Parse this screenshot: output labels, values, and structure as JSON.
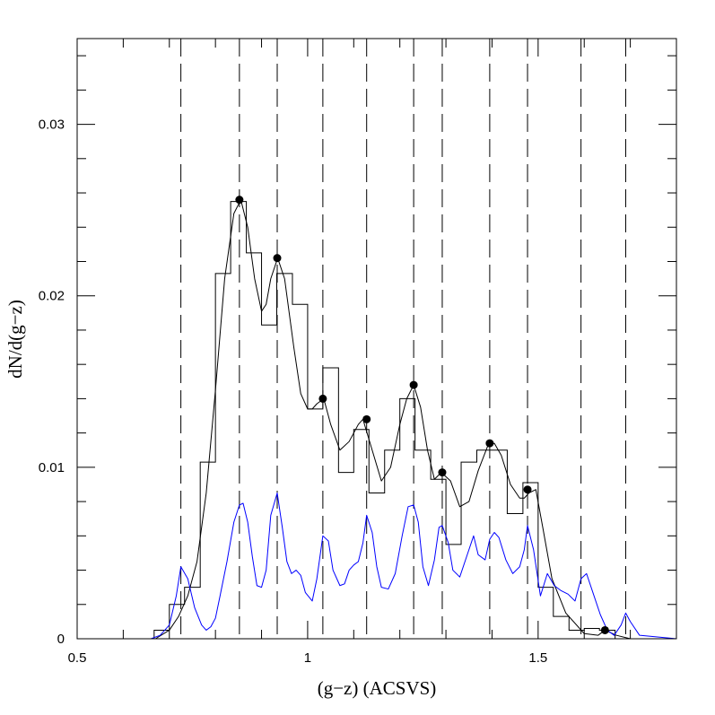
{
  "chart_data": {
    "type": "line",
    "xlabel": "(g−z)  (ACSVS)",
    "ylabel": "dN/d(g−z)",
    "xlim": [
      0.5,
      1.8
    ],
    "ylim": [
      0,
      0.035
    ],
    "x_ticks": [
      {
        "value": 0.5,
        "label": "0.5"
      },
      {
        "value": 1.0,
        "label": "1"
      },
      {
        "value": 1.5,
        "label": "1.5"
      }
    ],
    "y_ticks": [
      {
        "value": 0,
        "label": "0"
      },
      {
        "value": 0.01,
        "label": "0.01"
      },
      {
        "value": 0.02,
        "label": "0.02"
      },
      {
        "value": 0.03,
        "label": "0.03"
      }
    ],
    "x_minor_step": 0.1,
    "y_minor_step": 0.002,
    "grid": false,
    "colors": {
      "histogram": "#000000",
      "smooth": "#000000",
      "blue": "#0000ff",
      "peaks": "#000000"
    },
    "vertical_lines": [
      0.725,
      0.852,
      0.934,
      1.033,
      1.128,
      1.23,
      1.292,
      1.395,
      1.477,
      1.593,
      1.69
    ],
    "histogram": {
      "edges": [
        0.667,
        0.7,
        0.733,
        0.767,
        0.8,
        0.833,
        0.867,
        0.9,
        0.933,
        0.967,
        1.0,
        1.033,
        1.067,
        1.1,
        1.133,
        1.167,
        1.2,
        1.233,
        1.267,
        1.3,
        1.333,
        1.367,
        1.4,
        1.433,
        1.467,
        1.5,
        1.533,
        1.567,
        1.6,
        1.633,
        1.667
      ],
      "values": [
        0.0005,
        0.002,
        0.003,
        0.0103,
        0.0213,
        0.0255,
        0.0225,
        0.0183,
        0.0213,
        0.0195,
        0.0134,
        0.0158,
        0.0097,
        0.0122,
        0.0085,
        0.011,
        0.014,
        0.011,
        0.0093,
        0.0055,
        0.0103,
        0.011,
        0.011,
        0.0073,
        0.0091,
        0.003,
        0.0013,
        0.0005,
        0.0006,
        0.0005
      ]
    },
    "series": [
      {
        "style": "smooth",
        "x": [
          0.67,
          0.7,
          0.72,
          0.74,
          0.76,
          0.78,
          0.8,
          0.82,
          0.84,
          0.855,
          0.87,
          0.885,
          0.9,
          0.91,
          0.92,
          0.935,
          0.95,
          0.97,
          0.985,
          1.0,
          1.01,
          1.02,
          1.035,
          1.05,
          1.07,
          1.09,
          1.11,
          1.12,
          1.14,
          1.16,
          1.18,
          1.2,
          1.215,
          1.23,
          1.245,
          1.26,
          1.275,
          1.29,
          1.31,
          1.33,
          1.35,
          1.37,
          1.39,
          1.405,
          1.42,
          1.44,
          1.46,
          1.47,
          1.48,
          1.495,
          1.51,
          1.53,
          1.56,
          1.6,
          1.63,
          1.645,
          1.67,
          1.7
        ],
        "values": [
          0.0,
          0.0005,
          0.0013,
          0.0025,
          0.0045,
          0.0085,
          0.0145,
          0.021,
          0.0248,
          0.0256,
          0.024,
          0.021,
          0.0191,
          0.0195,
          0.021,
          0.0222,
          0.021,
          0.017,
          0.0143,
          0.0134,
          0.0134,
          0.0137,
          0.014,
          0.0125,
          0.011,
          0.0115,
          0.0125,
          0.0128,
          0.011,
          0.0092,
          0.01,
          0.0125,
          0.014,
          0.0148,
          0.0135,
          0.011,
          0.0093,
          0.0097,
          0.0092,
          0.0077,
          0.008,
          0.0098,
          0.0112,
          0.0114,
          0.0107,
          0.009,
          0.0082,
          0.0082,
          0.0085,
          0.0087,
          0.0065,
          0.0035,
          0.0015,
          0.0003,
          0.0002,
          0.0005,
          0.0002,
          0.0
        ]
      },
      {
        "style": "blue",
        "x": [
          0.5,
          0.66,
          0.68,
          0.7,
          0.715,
          0.725,
          0.74,
          0.755,
          0.77,
          0.78,
          0.79,
          0.8,
          0.81,
          0.825,
          0.84,
          0.852,
          0.86,
          0.87,
          0.88,
          0.89,
          0.9,
          0.91,
          0.92,
          0.934,
          0.945,
          0.955,
          0.965,
          0.975,
          0.985,
          0.995,
          1.01,
          1.02,
          1.033,
          1.045,
          1.055,
          1.07,
          1.08,
          1.09,
          1.1,
          1.11,
          1.12,
          1.128,
          1.14,
          1.15,
          1.16,
          1.175,
          1.19,
          1.205,
          1.218,
          1.23,
          1.24,
          1.25,
          1.262,
          1.275,
          1.285,
          1.292,
          1.305,
          1.315,
          1.33,
          1.345,
          1.36,
          1.37,
          1.385,
          1.395,
          1.405,
          1.415,
          1.43,
          1.445,
          1.46,
          1.47,
          1.477,
          1.49,
          1.505,
          1.52,
          1.535,
          1.55,
          1.565,
          1.58,
          1.593,
          1.605,
          1.62,
          1.635,
          1.65,
          1.665,
          1.68,
          1.69,
          1.7,
          1.72,
          1.8
        ],
        "values": [
          0.0,
          0.0,
          0.0002,
          0.0008,
          0.0025,
          0.0042,
          0.0035,
          0.0018,
          0.0008,
          0.0005,
          0.0007,
          0.0012,
          0.0025,
          0.0045,
          0.0068,
          0.0078,
          0.0079,
          0.0068,
          0.0048,
          0.0031,
          0.003,
          0.004,
          0.0072,
          0.0085,
          0.0065,
          0.0045,
          0.0038,
          0.004,
          0.0037,
          0.0027,
          0.0022,
          0.0035,
          0.006,
          0.0057,
          0.004,
          0.0031,
          0.0032,
          0.004,
          0.0043,
          0.0045,
          0.0056,
          0.0072,
          0.0062,
          0.0042,
          0.003,
          0.0029,
          0.0038,
          0.006,
          0.0077,
          0.0078,
          0.0068,
          0.0042,
          0.0031,
          0.0046,
          0.0065,
          0.0066,
          0.0056,
          0.004,
          0.0036,
          0.0048,
          0.006,
          0.0049,
          0.0046,
          0.0058,
          0.0062,
          0.0059,
          0.0046,
          0.0038,
          0.0042,
          0.0052,
          0.0066,
          0.0052,
          0.0025,
          0.0038,
          0.0031,
          0.0028,
          0.0026,
          0.0022,
          0.0035,
          0.0038,
          0.0026,
          0.0014,
          0.0005,
          0.0002,
          0.0008,
          0.0015,
          0.001,
          0.0002,
          0.0
        ]
      }
    ],
    "peaks": {
      "x": [
        0.852,
        0.934,
        1.033,
        1.128,
        1.23,
        1.292,
        1.395,
        1.477,
        1.645
      ],
      "values": [
        0.0256,
        0.0222,
        0.014,
        0.0128,
        0.0148,
        0.0097,
        0.0114,
        0.0087,
        0.0005
      ]
    }
  }
}
